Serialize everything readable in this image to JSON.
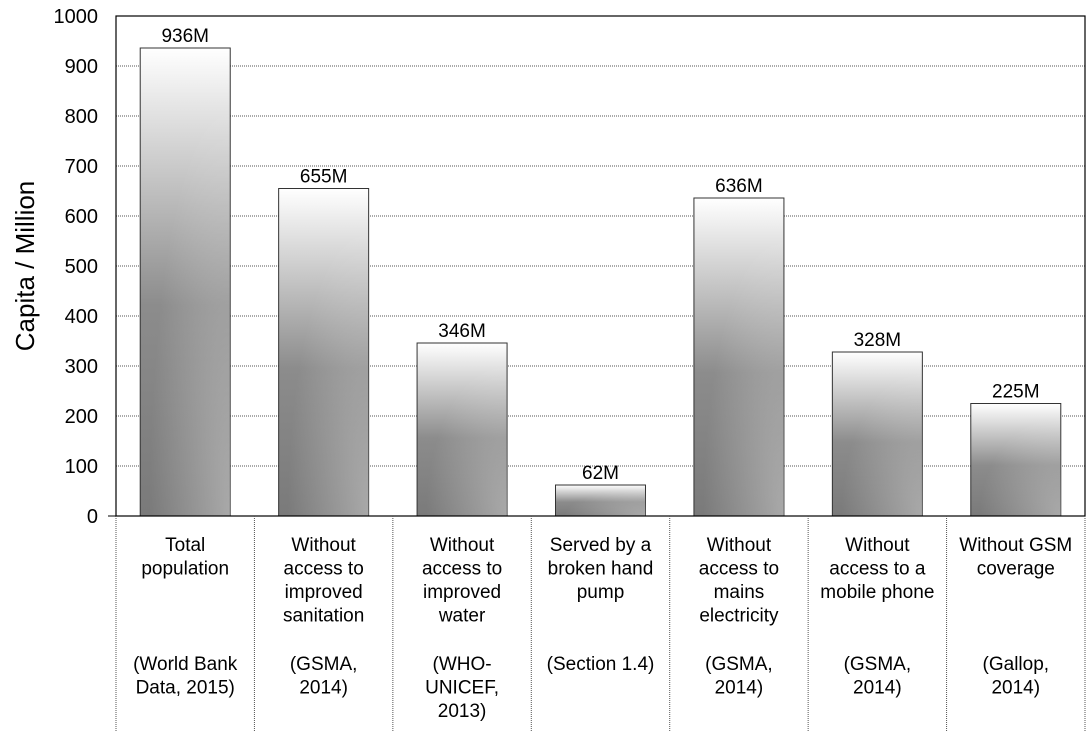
{
  "chart_data": {
    "type": "bar",
    "ylabel": "Capita / Million",
    "xlabel": "",
    "ylim": [
      0,
      1000
    ],
    "yticks": [
      0,
      100,
      200,
      300,
      400,
      500,
      600,
      700,
      800,
      900,
      1000
    ],
    "grid": true,
    "categories": [
      {
        "lines": [
          "Total",
          "population"
        ],
        "source": [
          "(World Bank",
          "Data, 2015)"
        ]
      },
      {
        "lines": [
          "Without",
          "access to",
          "improved",
          "sanitation"
        ],
        "source": [
          "(GSMA,",
          "2014)"
        ]
      },
      {
        "lines": [
          "Without",
          "access to",
          "improved",
          "water"
        ],
        "source": [
          "(WHO-",
          "UNICEF,",
          "2013)"
        ]
      },
      {
        "lines": [
          "Served by a",
          "broken hand",
          "pump"
        ],
        "source": [
          "(Section 1.4)"
        ]
      },
      {
        "lines": [
          "Without",
          "access to",
          "mains",
          "electricity"
        ],
        "source": [
          "(GSMA,",
          "2014)"
        ]
      },
      {
        "lines": [
          "Without",
          "access to a",
          "mobile phone"
        ],
        "source": [
          "(GSMA,",
          "2014)"
        ]
      },
      {
        "lines": [
          "Without GSM",
          "coverage"
        ],
        "source": [
          "(Gallop,",
          "2014)"
        ]
      }
    ],
    "values": [
      936,
      655,
      346,
      62,
      636,
      328,
      225
    ],
    "data_labels": [
      "936M",
      "655M",
      "346M",
      "62M",
      "636M",
      "328M",
      "225M"
    ]
  }
}
